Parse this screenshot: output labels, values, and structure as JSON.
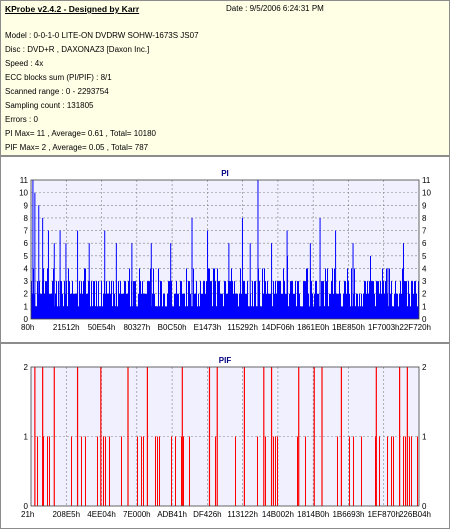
{
  "header": {
    "title": "KProbe v2.4.2 - Designed by Karr",
    "date": "Date : 9/5/2006 6:24:31 PM",
    "lines": [
      "Model : 0-0-1-0 LITE-ON DVDRW SOHW-1673S JS07",
      "Disc : DVD+R , DAXONAZ3 [Daxon Inc.]",
      "Speed : 4x",
      "ECC blocks sum (PI/PIF) : 8/1",
      "Scanned range : 0 - 2293754",
      "Sampling count : 131805",
      "Errors : 0",
      "PI Max= 11 , Average= 0.61 , Total= 10180",
      "PIF Max= 2 , Average= 0.05 , Total= 787"
    ]
  },
  "colors": {
    "pi_series": "#0000ff",
    "pif_series": "#ff0000",
    "grid": "#808080",
    "plot_bg": "#f0f0ff",
    "info_bg": "#ffffe6"
  },
  "chart_data": [
    {
      "type": "bar",
      "title": "PI",
      "color": "#0000ff",
      "ylim": [
        0,
        11
      ],
      "yticks": [
        0,
        1,
        2,
        3,
        4,
        5,
        6,
        7,
        8,
        9,
        10,
        11
      ],
      "xtick_labels": [
        "80h",
        "21512h",
        "50E54h",
        "80327h",
        "B0C50h",
        "E1473h",
        "115292h",
        "14DF06h",
        "1861E0h",
        "1BE850h",
        "1F7003h",
        "22F720h"
      ],
      "grid": true,
      "spikes": [
        {
          "x": 0.005,
          "v": 11
        },
        {
          "x": 0.01,
          "v": 10
        },
        {
          "x": 0.02,
          "v": 9
        },
        {
          "x": 0.03,
          "v": 8
        },
        {
          "x": 0.045,
          "v": 7
        },
        {
          "x": 0.06,
          "v": 6
        },
        {
          "x": 0.075,
          "v": 7
        },
        {
          "x": 0.09,
          "v": 6
        },
        {
          "x": 0.12,
          "v": 7
        },
        {
          "x": 0.15,
          "v": 6
        },
        {
          "x": 0.19,
          "v": 7
        },
        {
          "x": 0.22,
          "v": 6
        },
        {
          "x": 0.26,
          "v": 6
        },
        {
          "x": 0.31,
          "v": 6
        },
        {
          "x": 0.36,
          "v": 6
        },
        {
          "x": 0.415,
          "v": 8
        },
        {
          "x": 0.455,
          "v": 7
        },
        {
          "x": 0.51,
          "v": 6
        },
        {
          "x": 0.545,
          "v": 8
        },
        {
          "x": 0.565,
          "v": 6
        },
        {
          "x": 0.585,
          "v": 11
        },
        {
          "x": 0.62,
          "v": 6
        },
        {
          "x": 0.66,
          "v": 7
        },
        {
          "x": 0.72,
          "v": 6
        },
        {
          "x": 0.745,
          "v": 8
        },
        {
          "x": 0.785,
          "v": 7
        },
        {
          "x": 0.83,
          "v": 6
        },
        {
          "x": 0.875,
          "v": 5
        },
        {
          "x": 0.92,
          "v": 4
        },
        {
          "x": 0.96,
          "v": 6
        }
      ]
    },
    {
      "type": "bar",
      "title": "PIF",
      "color": "#ff0000",
      "ylim": [
        0,
        2
      ],
      "yticks": [
        0,
        1,
        2
      ],
      "xtick_labels": [
        "21h",
        "208E5h",
        "4EE04h",
        "7E000h",
        "ADB41h",
        "DF426h",
        "113122h",
        "14B002h",
        "1814B0h",
        "1B6693h",
        "1EF870h",
        "226B04h"
      ],
      "grid": true,
      "two_positions": [
        0.01,
        0.03,
        0.06,
        0.12,
        0.18,
        0.25,
        0.3,
        0.39,
        0.46,
        0.48,
        0.55,
        0.6,
        0.62,
        0.69,
        0.73,
        0.75,
        0.8,
        0.89,
        0.95,
        0.97
      ],
      "one_density": 0.22
    }
  ]
}
